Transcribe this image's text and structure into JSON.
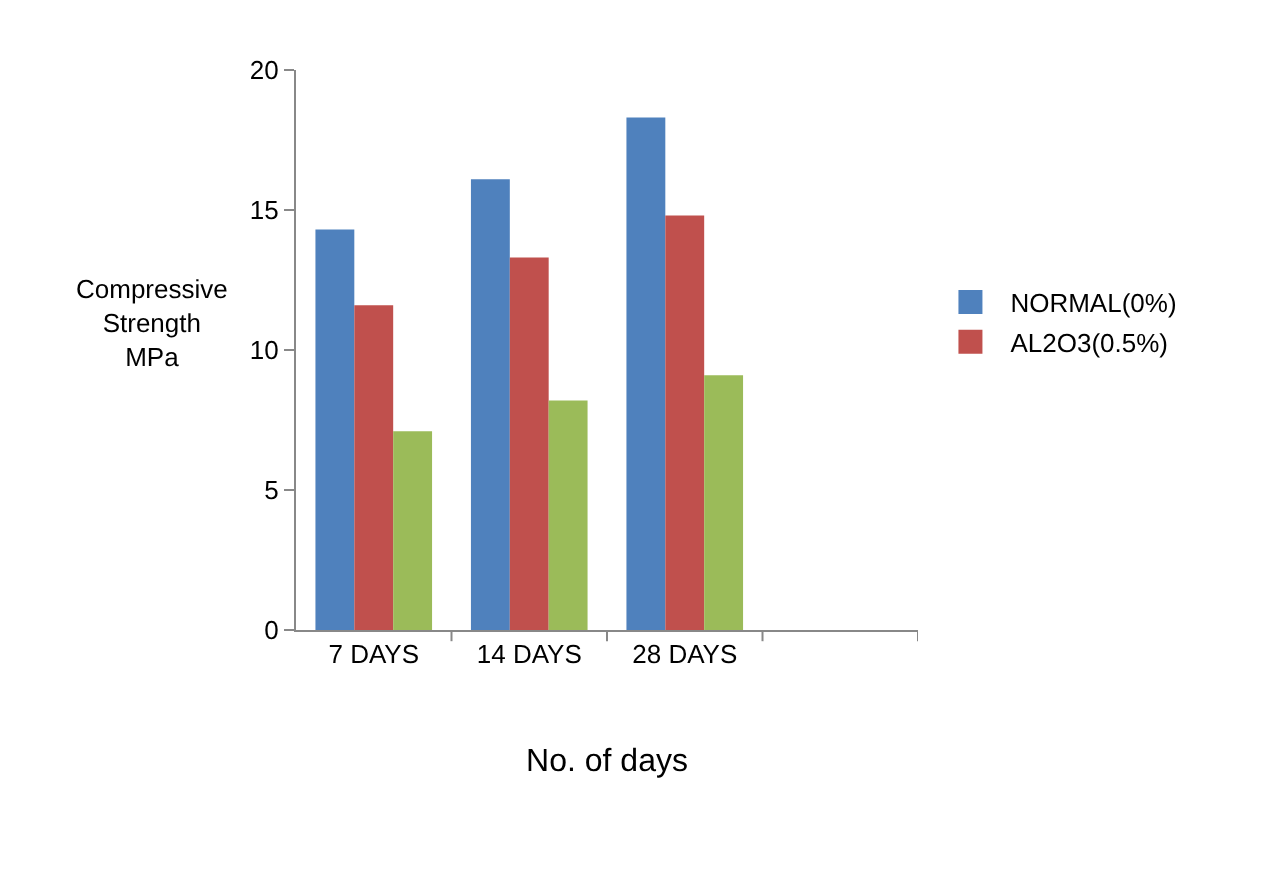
{
  "chart_data": {
    "type": "bar",
    "xlabel": "No. of days",
    "ylabel": "Compressive Strength MPa",
    "categories": [
      "7 DAYS",
      "14 DAYS",
      "28 DAYS",
      null
    ],
    "series": [
      {
        "name": "NORMAL(0%)",
        "color": "#4f81bd",
        "values": [
          14.3,
          16.1,
          18.3,
          null
        ]
      },
      {
        "name": "AL2O3(0.5%)",
        "color": "#c0504d",
        "values": [
          11.6,
          13.3,
          14.8,
          null
        ]
      },
      {
        "color": "#9bbb59",
        "values": [
          7.1,
          8.2,
          9.1,
          null
        ]
      }
    ],
    "ylim": [
      0,
      20
    ],
    "yticks": [
      0,
      5,
      10,
      15,
      20
    ],
    "grid": false,
    "legend": "right"
  }
}
